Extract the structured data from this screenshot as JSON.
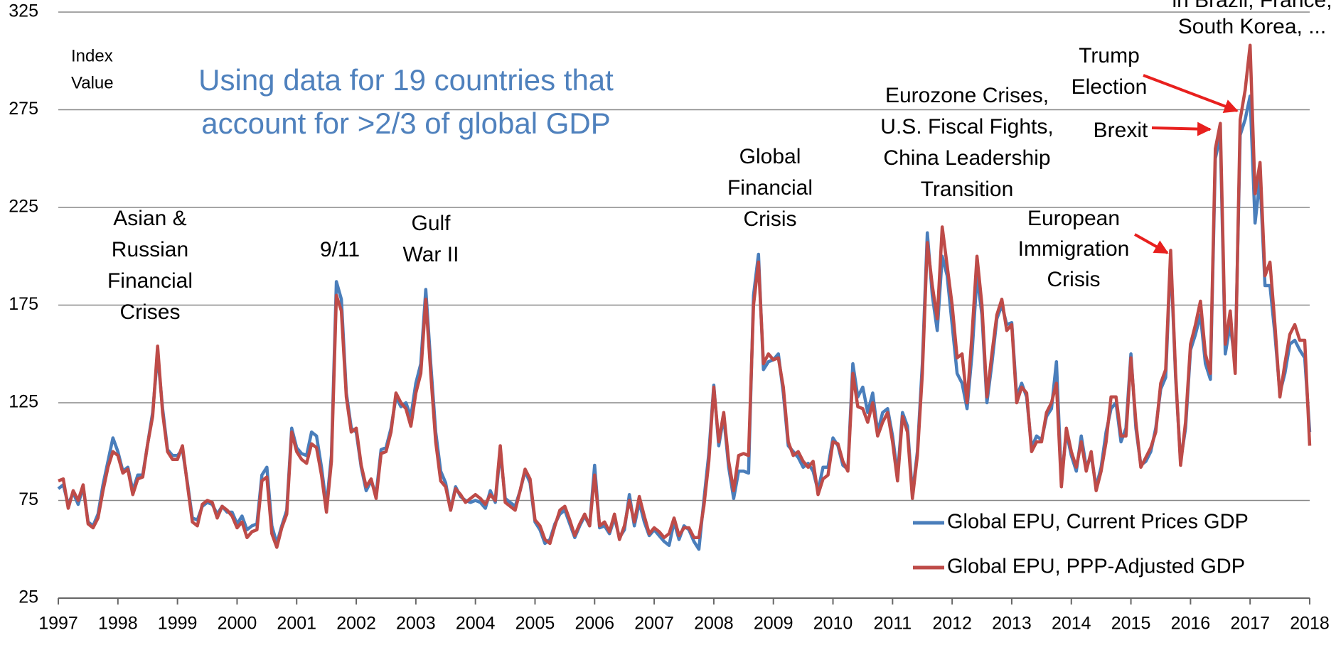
{
  "chart_data": {
    "type": "line",
    "subtitle": [
      "Using data for 19 countries that",
      "account for >2/3 of global GDP"
    ],
    "y_label": [
      "Index",
      "Value"
    ],
    "annotations": [
      [
        "Asian &",
        "Russian",
        "Financial",
        "Crises"
      ],
      [
        "9/11"
      ],
      [
        "Gulf",
        "War II"
      ],
      [
        "Global",
        "Financial",
        "Crisis"
      ],
      [
        "Eurozone Crises,",
        "U.S. Fiscal Fights,",
        "China Leadership",
        "Transition"
      ],
      [
        "European",
        "Immigration",
        "Crisis"
      ],
      [
        "Trump",
        "Election"
      ],
      [
        "Brexit"
      ],
      [
        "in Brazil, France,",
        "South Korea, ..."
      ]
    ],
    "categories": [
      "1997",
      null,
      null,
      null,
      null,
      null,
      null,
      null,
      null,
      null,
      null,
      null,
      "1998",
      null,
      null,
      null,
      null,
      null,
      null,
      null,
      null,
      null,
      null,
      null,
      "1999",
      null,
      null,
      null,
      null,
      null,
      null,
      null,
      null,
      null,
      null,
      null,
      "2000",
      null,
      null,
      null,
      null,
      null,
      null,
      null,
      null,
      null,
      null,
      null,
      "2001",
      null,
      null,
      null,
      null,
      null,
      null,
      null,
      null,
      null,
      null,
      null,
      "2002",
      null,
      null,
      null,
      null,
      null,
      null,
      null,
      null,
      null,
      null,
      null,
      "2003",
      null,
      null,
      null,
      null,
      null,
      null,
      null,
      null,
      null,
      null,
      null,
      "2004",
      null,
      null,
      null,
      null,
      null,
      null,
      null,
      null,
      null,
      null,
      null,
      "2005",
      null,
      null,
      null,
      null,
      null,
      null,
      null,
      null,
      null,
      null,
      null,
      "2006",
      null,
      null,
      null,
      null,
      null,
      null,
      null,
      null,
      null,
      null,
      null,
      "2007",
      null,
      null,
      null,
      null,
      null,
      null,
      null,
      null,
      null,
      null,
      null,
      "2008",
      null,
      null,
      null,
      null,
      null,
      null,
      null,
      null,
      null,
      null,
      null,
      "2009",
      null,
      null,
      null,
      null,
      null,
      null,
      null,
      null,
      null,
      null,
      null,
      "2010",
      null,
      null,
      null,
      null,
      null,
      null,
      null,
      null,
      null,
      null,
      null,
      "2011",
      null,
      null,
      null,
      null,
      null,
      null,
      null,
      null,
      null,
      null,
      null,
      "2012",
      null,
      null,
      null,
      null,
      null,
      null,
      null,
      null,
      null,
      null,
      null,
      "2013",
      null,
      null,
      null,
      null,
      null,
      null,
      null,
      null,
      null,
      null,
      null,
      "2014",
      null,
      null,
      null,
      null,
      null,
      null,
      null,
      null,
      null,
      null,
      null,
      "2015",
      null,
      null,
      null,
      null,
      null,
      null,
      null,
      null,
      null,
      null,
      null,
      "2016",
      null,
      null,
      null,
      null,
      null,
      null,
      null,
      null,
      null,
      null,
      null,
      "2017",
      null,
      null,
      null,
      null,
      null,
      null,
      null,
      null,
      null,
      null,
      null,
      "2018"
    ],
    "series": [
      {
        "name": "Global EPU, Current Prices GDP",
        "color": "#4a7ebb",
        "values": [
          81,
          83,
          73,
          79,
          73,
          82,
          64,
          62,
          68,
          83,
          95,
          107,
          100,
          90,
          92,
          80,
          88,
          88,
          104,
          120,
          150,
          122,
          101,
          98,
          98,
          101,
          84,
          66,
          65,
          72,
          74,
          73,
          68,
          72,
          69,
          69,
          63,
          67,
          60,
          62,
          63,
          88,
          92,
          62,
          53,
          62,
          70,
          112,
          102,
          99,
          98,
          110,
          108,
          92,
          72,
          98,
          187,
          178,
          130,
          112,
          110,
          92,
          80,
          85,
          78,
          101,
          102,
          112,
          128,
          123,
          125,
          118,
          135,
          145,
          183,
          145,
          110,
          90,
          84,
          70,
          82,
          77,
          75,
          74,
          75,
          74,
          71,
          80,
          74,
          100,
          76,
          74,
          72,
          80,
          90,
          84,
          64,
          60,
          53,
          55,
          63,
          68,
          70,
          63,
          56,
          62,
          67,
          62,
          93,
          61,
          62,
          58,
          66,
          56,
          60,
          78,
          62,
          74,
          64,
          57,
          60,
          57,
          54,
          52,
          64,
          55,
          62,
          60,
          54,
          50,
          75,
          99,
          134,
          103,
          118,
          92,
          76,
          90,
          90,
          89,
          180,
          201,
          142,
          146,
          147,
          150,
          130,
          103,
          100,
          97,
          92,
          94,
          90,
          80,
          92,
          92,
          107,
          103,
          93,
          91,
          145,
          128,
          133,
          120,
          130,
          110,
          120,
          122,
          108,
          88,
          120,
          113,
          78,
          100,
          145,
          212,
          180,
          162,
          200,
          190,
          165,
          140,
          135,
          122,
          150,
          190,
          170,
          125,
          145,
          168,
          175,
          165,
          166,
          128,
          135,
          128,
          102,
          108,
          106,
          118,
          122,
          146,
          85,
          110,
          98,
          90,
          108,
          92,
          98,
          82,
          92,
          110,
          122,
          125,
          105,
          112,
          150,
          112,
          93,
          95,
          100,
          112,
          132,
          138,
          200,
          138,
          95,
          112,
          152,
          160,
          170,
          145,
          137,
          250,
          262,
          150,
          165,
          145,
          262,
          270,
          282,
          217,
          240,
          185,
          185,
          160,
          130,
          140,
          155,
          157,
          152,
          148,
          110
        ]
      },
      {
        "name": "Global EPU, PPP-Adjusted GDP",
        "color": "#be4b48",
        "values": [
          85,
          86,
          71,
          80,
          75,
          83,
          63,
          61,
          66,
          80,
          92,
          100,
          98,
          89,
          91,
          78,
          86,
          87,
          104,
          118,
          154,
          120,
          100,
          96,
          96,
          103,
          83,
          64,
          62,
          73,
          75,
          74,
          66,
          72,
          70,
          67,
          61,
          64,
          56,
          59,
          60,
          85,
          87,
          58,
          51,
          61,
          68,
          110,
          100,
          96,
          94,
          104,
          102,
          88,
          69,
          95,
          180,
          172,
          128,
          110,
          112,
          93,
          82,
          86,
          76,
          99,
          100,
          110,
          130,
          125,
          122,
          113,
          130,
          140,
          178,
          140,
          105,
          85,
          82,
          70,
          81,
          78,
          74,
          76,
          78,
          76,
          73,
          78,
          75,
          103,
          74,
          72,
          70,
          80,
          91,
          86,
          65,
          62,
          55,
          53,
          62,
          70,
          72,
          65,
          57,
          63,
          68,
          62,
          88,
          62,
          64,
          59,
          68,
          55,
          62,
          75,
          64,
          77,
          67,
          58,
          61,
          59,
          56,
          58,
          66,
          57,
          61,
          61,
          56,
          56,
          72,
          95,
          133,
          105,
          120,
          95,
          80,
          98,
          99,
          98,
          175,
          197,
          145,
          150,
          147,
          148,
          133,
          105,
          98,
          100,
          95,
          92,
          95,
          78,
          86,
          88,
          105,
          104,
          95,
          90,
          140,
          123,
          122,
          115,
          125,
          108,
          115,
          120,
          105,
          85,
          118,
          110,
          76,
          98,
          140,
          207,
          185,
          168,
          215,
          195,
          175,
          148,
          150,
          125,
          160,
          200,
          175,
          128,
          150,
          170,
          178,
          162,
          165,
          125,
          133,
          130,
          100,
          105,
          105,
          120,
          125,
          135,
          82,
          112,
          100,
          92,
          105,
          90,
          100,
          80,
          90,
          105,
          128,
          128,
          108,
          108,
          148,
          115,
          92,
          97,
          102,
          110,
          135,
          142,
          203,
          140,
          93,
          115,
          155,
          165,
          177,
          150,
          140,
          255,
          268,
          155,
          172,
          140,
          270,
          285,
          308,
          232,
          248,
          190,
          197,
          165,
          128,
          145,
          160,
          165,
          157,
          157,
          103
        ]
      }
    ],
    "ylim": [
      25,
      325
    ],
    "yticks": [
      25,
      75,
      125,
      175,
      225,
      275,
      325
    ],
    "grid": true,
    "legend": "lower-right",
    "annotation_color": "#e8201e"
  }
}
